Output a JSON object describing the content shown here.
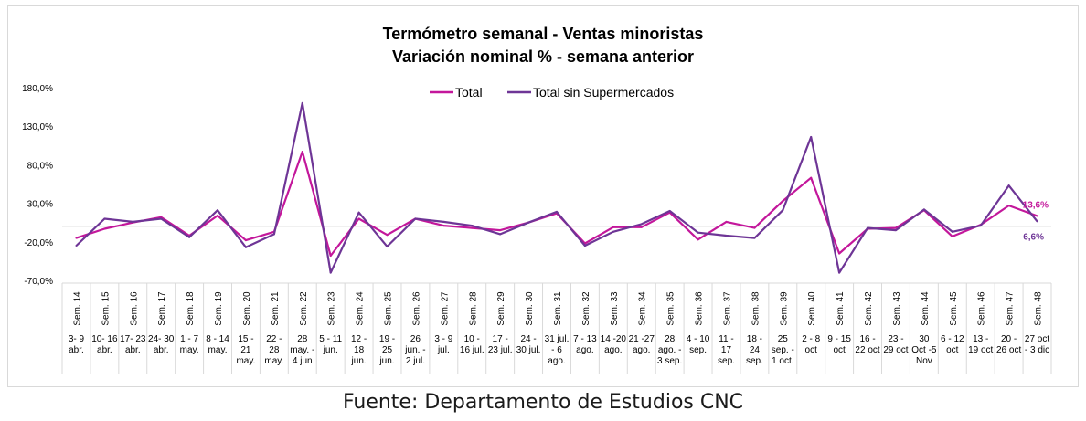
{
  "chart_data": {
    "type": "line",
    "title": "Termómetro semanal - Ventas minoristas",
    "subtitle": "Variación nominal % - semana anterior",
    "ylim": [
      -70,
      180
    ],
    "yticks": [
      "180,0%",
      "130,0%",
      "80,0%",
      "30,0%",
      "-20,0%",
      "-70,0%"
    ],
    "ytick_values": [
      180,
      130,
      80,
      30,
      -20,
      -70
    ],
    "legend_position": "top-center",
    "grid": false,
    "categories": [
      {
        "week": "Sem. 14",
        "dates": [
          "3- 9",
          "abr."
        ]
      },
      {
        "week": "Sem. 15",
        "dates": [
          "10- 16",
          "abr."
        ]
      },
      {
        "week": "Sem. 16",
        "dates": [
          "17- 23",
          "abr."
        ]
      },
      {
        "week": "Sem. 17",
        "dates": [
          "24- 30",
          "abr."
        ]
      },
      {
        "week": "Sem. 18",
        "dates": [
          "1 - 7",
          "may."
        ]
      },
      {
        "week": "Sem. 19",
        "dates": [
          "8 - 14",
          "may."
        ]
      },
      {
        "week": "Sem. 20",
        "dates": [
          "15 -",
          "21",
          "may."
        ]
      },
      {
        "week": "Sem. 21",
        "dates": [
          "22 -",
          "28",
          "may."
        ]
      },
      {
        "week": "Sem. 22",
        "dates": [
          "28",
          "may. -",
          "4 jun"
        ]
      },
      {
        "week": "Sem. 23",
        "dates": [
          "5 - 11",
          "jun."
        ]
      },
      {
        "week": "Sem. 24",
        "dates": [
          "12 -",
          "18",
          "jun."
        ]
      },
      {
        "week": "Sem. 25",
        "dates": [
          "19 -",
          "25",
          "jun."
        ]
      },
      {
        "week": "Sem. 26",
        "dates": [
          "26",
          "jun. -",
          "2 jul."
        ]
      },
      {
        "week": "Sem. 27",
        "dates": [
          "3 - 9",
          "jul."
        ]
      },
      {
        "week": "Sem. 28",
        "dates": [
          "10 -",
          "16 jul."
        ]
      },
      {
        "week": "Sem. 29",
        "dates": [
          "17 -",
          "23 jul."
        ]
      },
      {
        "week": "Sem. 30",
        "dates": [
          "24 -",
          "30 jul."
        ]
      },
      {
        "week": "Sem. 31",
        "dates": [
          "31 jul.",
          "- 6",
          "ago."
        ]
      },
      {
        "week": "Sem. 32",
        "dates": [
          "7 - 13",
          "ago."
        ]
      },
      {
        "week": "Sem. 33",
        "dates": [
          "14 -20",
          "ago."
        ]
      },
      {
        "week": "Sem. 34",
        "dates": [
          "21 -27",
          "ago."
        ]
      },
      {
        "week": "Sem. 35",
        "dates": [
          "28",
          "ago. -",
          "3 sep."
        ]
      },
      {
        "week": "Sem. 36",
        "dates": [
          "4 - 10",
          "sep."
        ]
      },
      {
        "week": "Sem. 37",
        "dates": [
          "11 -",
          "17",
          "sep."
        ]
      },
      {
        "week": "Sem. 38",
        "dates": [
          "18 -",
          "24",
          "sep."
        ]
      },
      {
        "week": "Sem. 39",
        "dates": [
          "25",
          "sep. -",
          "1 oct."
        ]
      },
      {
        "week": "Sem. 40",
        "dates": [
          "2 - 8",
          "oct"
        ]
      },
      {
        "week": "Sem. 41",
        "dates": [
          "9 - 15",
          "oct"
        ]
      },
      {
        "week": "Sem. 42",
        "dates": [
          "16 -",
          "22 oct"
        ]
      },
      {
        "week": "Sem. 43",
        "dates": [
          "23 -",
          "29 oct"
        ]
      },
      {
        "week": "Sem. 44",
        "dates": [
          "30",
          "Oct -5",
          "Nov"
        ]
      },
      {
        "week": "Sem. 45",
        "dates": [
          "6 - 12",
          "oct"
        ]
      },
      {
        "week": "Sem. 46",
        "dates": [
          "13 -",
          "19 oct"
        ]
      },
      {
        "week": "Sem. 47",
        "dates": [
          "20 -",
          "26 oct"
        ]
      },
      {
        "week": "Sem. 48",
        "dates": [
          "27 oct",
          "- 3 dic"
        ]
      }
    ],
    "series": [
      {
        "name": "Total",
        "color": "#c3179b",
        "values": [
          -15,
          -3,
          5,
          12,
          -12,
          14,
          -18,
          -7,
          97,
          -38,
          10,
          -11,
          10,
          1,
          -2,
          -5,
          5,
          17,
          -22,
          -1,
          -1,
          18,
          -17,
          6,
          -2,
          33,
          63,
          -35,
          -3,
          -2,
          21,
          -13,
          2,
          27,
          13.6
        ],
        "end_label": "13,6%"
      },
      {
        "name": "Total sin Supermercados",
        "color": "#6e3596",
        "values": [
          -25,
          10,
          6,
          10,
          -14,
          21,
          -27,
          -10,
          160,
          -60,
          18,
          -26,
          10,
          6,
          1,
          -10,
          5,
          19,
          -25,
          -7,
          3,
          20,
          -8,
          -12,
          -15,
          21,
          116,
          -60,
          -2,
          -5,
          22,
          -7,
          1,
          53,
          6.6
        ],
        "end_label": "6,6%"
      }
    ]
  },
  "source_note": "Fuente: Departamento de Estudios CNC"
}
